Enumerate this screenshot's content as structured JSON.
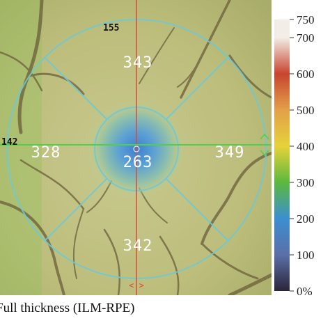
{
  "thickness_map": {
    "sectors": {
      "center": "263",
      "superior": "343",
      "inferior": "342",
      "temporal": "328",
      "nasal": "349"
    },
    "scan_line_values": {
      "vertical": "155",
      "horizontal": "142"
    },
    "bottom_marker": "<|>",
    "right_marker": "^v"
  },
  "colorbar": {
    "ticks": [
      "0%",
      "100",
      "200",
      "300",
      "400",
      "500",
      "600",
      "700",
      "750"
    ],
    "colors": {
      "c0": "#2b2438",
      "c100": "#5a6fa8",
      "c200": "#3c8fd0",
      "c300": "#5cb83e",
      "c400": "#e6d23a",
      "c500": "#e2a04a",
      "c600": "#c8442f",
      "c700": "#f2ede6"
    }
  },
  "caption": "Full thickness (ILM-RPE)"
}
